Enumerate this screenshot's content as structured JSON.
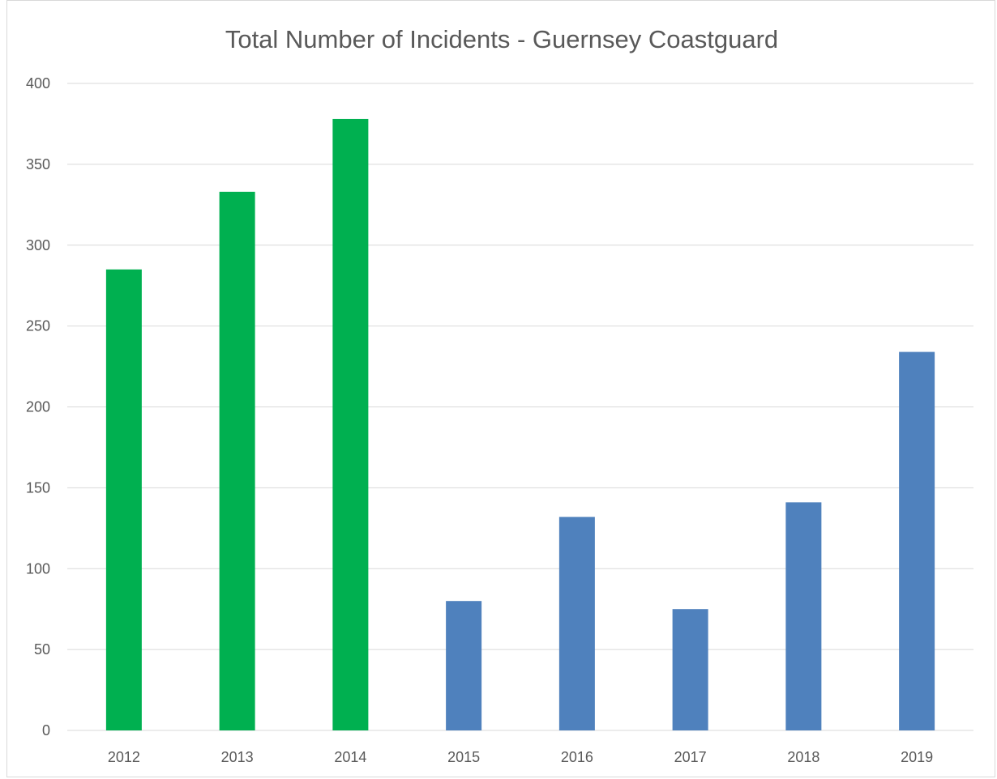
{
  "chart_data": {
    "type": "bar",
    "title": "Total Number of Incidents - Guernsey Coastguard",
    "xlabel": "",
    "ylabel": "",
    "categories": [
      "2012",
      "2013",
      "2014",
      "2015",
      "2016",
      "2017",
      "2018",
      "2019"
    ],
    "values": [
      285,
      333,
      378,
      80,
      132,
      75,
      141,
      234
    ],
    "bar_colors": [
      "#00b050",
      "#00b050",
      "#00b050",
      "#4f81bd",
      "#4f81bd",
      "#4f81bd",
      "#4f81bd",
      "#4f81bd"
    ],
    "ylim": [
      0,
      400
    ],
    "yticks": [
      "0",
      "50",
      "100",
      "150",
      "200",
      "250",
      "300",
      "350",
      "400"
    ],
    "grid": true,
    "legend": "none"
  }
}
